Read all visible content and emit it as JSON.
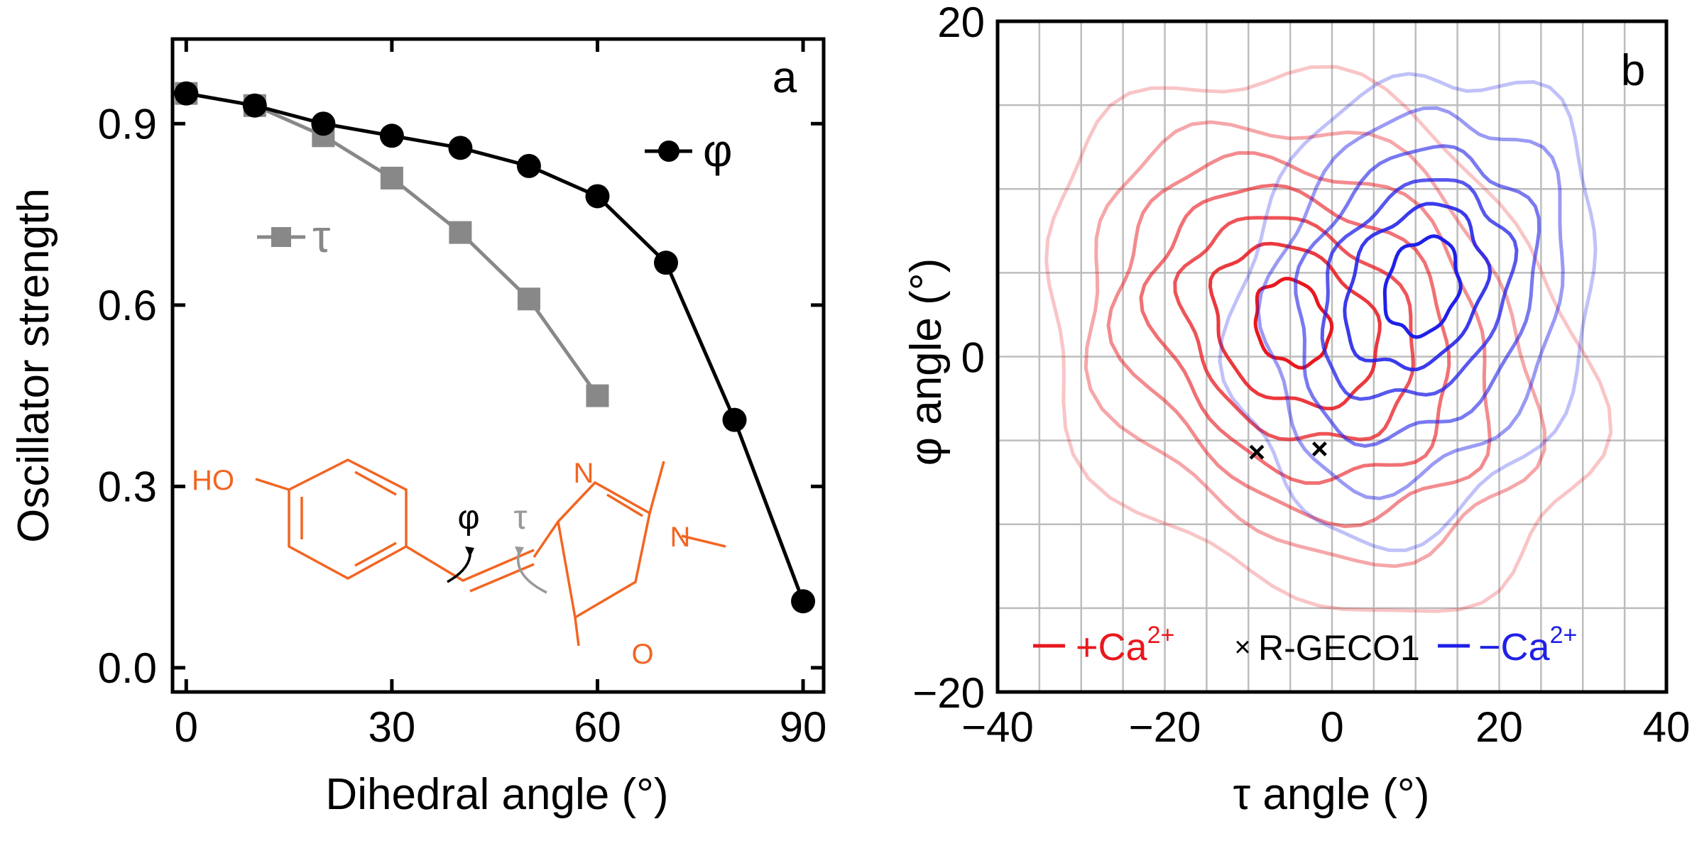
{
  "chart_data": [
    {
      "panel": "a",
      "type": "line",
      "xlabel": "Dihedral angle (°)",
      "ylabel": "Oscillator strength",
      "xlim": [
        -2,
        93
      ],
      "ylim": [
        -0.04,
        1.04
      ],
      "xticks": [
        0,
        30,
        60,
        90
      ],
      "yticks": [
        0.0,
        0.3,
        0.6,
        0.9
      ],
      "xtick_labels": [
        "0",
        "30",
        "60",
        "90"
      ],
      "ytick_labels": [
        "0.0",
        "0.3",
        "0.6",
        "0.9"
      ],
      "series": [
        {
          "name": "τ",
          "legend_label": "τ",
          "color": "#888888",
          "marker": "square",
          "x": [
            0,
            10,
            20,
            30,
            40,
            50,
            60
          ],
          "y": [
            0.95,
            0.93,
            0.88,
            0.81,
            0.72,
            0.61,
            0.45
          ]
        },
        {
          "name": "φ",
          "legend_label": "φ",
          "color": "#000000",
          "marker": "circle",
          "x": [
            0,
            10,
            20,
            30,
            40,
            50,
            60,
            70,
            80,
            90
          ],
          "y": [
            0.95,
            0.93,
            0.9,
            0.88,
            0.86,
            0.83,
            0.78,
            0.67,
            0.41,
            0.11
          ]
        }
      ],
      "inset": {
        "description": "chromophore structure",
        "color": "#F26522",
        "atom_labels": {
          "hydroxyl": "HO",
          "nitrogen_1": "N",
          "nitrogen_2": "N",
          "oxygen": "O"
        },
        "angle_labels": {
          "phi": "φ",
          "tau": "τ"
        }
      }
    },
    {
      "panel": "b",
      "type": "contour",
      "xlabel": "τ angle (°)",
      "ylabel": "φ angle (°)",
      "xlim": [
        -40,
        40
      ],
      "ylim": [
        -20,
        20
      ],
      "xticks": [
        -40,
        -20,
        0,
        20,
        40
      ],
      "yticks": [
        -20,
        0,
        20
      ],
      "xtick_labels": [
        "−40",
        "−20",
        "0",
        "20",
        "40"
      ],
      "ytick_labels": [
        "−20",
        "0",
        "20"
      ],
      "grid_step": 5,
      "series": [
        {
          "name": "+Ca2+",
          "color": "#E8181E",
          "center": [
            -5,
            2
          ],
          "levels": 7
        },
        {
          "name": "R-GECO1",
          "color": "#000000",
          "marker": "x",
          "points": [
            [
              -9,
              -5.7
            ],
            [
              -1.5,
              -5.5
            ]
          ]
        },
        {
          "name": "−Ca2+",
          "color": "#2020E8",
          "center": [
            10,
            4
          ],
          "levels": 6
        }
      ],
      "legend": {
        "plus_label": "+Ca",
        "plus_sup": "2+",
        "rgeco_label": "R-GECO1",
        "minus_label": "−Ca",
        "minus_sup": "2+",
        "placement": "bottom"
      }
    }
  ],
  "panel_letters": {
    "a": "a",
    "b": "b"
  }
}
